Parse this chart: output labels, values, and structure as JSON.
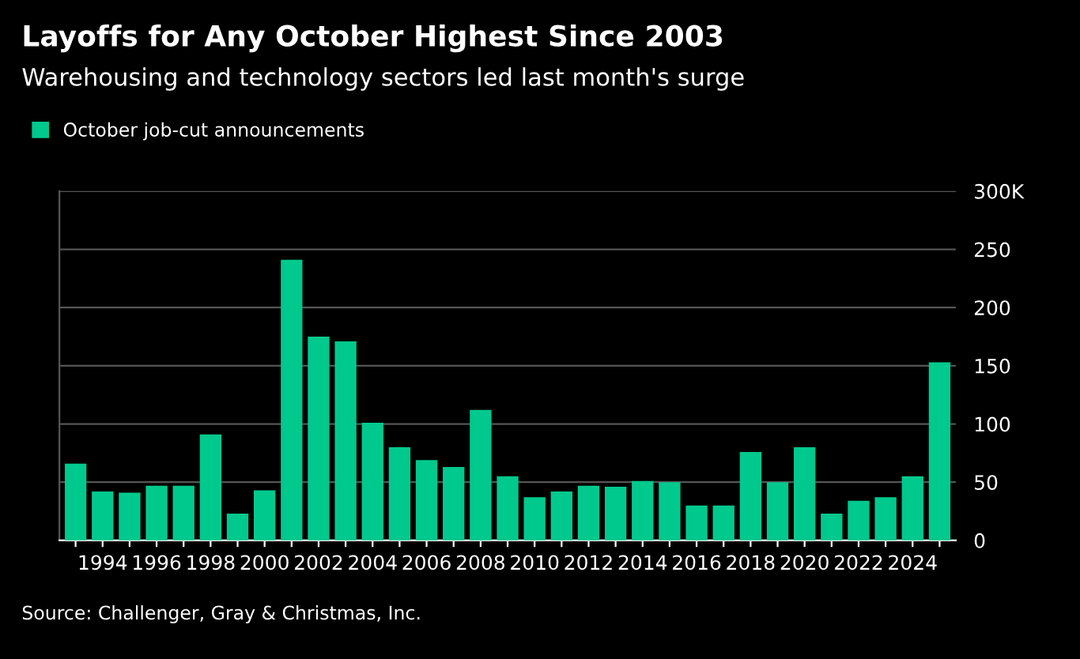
{
  "chart_data": {
    "type": "bar",
    "title": "Layoffs for Any October Highest Since 2003",
    "subtitle": "Warehousing and technology sectors led last month's surge",
    "categories": [
      null,
      "1994",
      null,
      "1996",
      null,
      "1998",
      null,
      "2000",
      null,
      "2002",
      null,
      "2004",
      null,
      "2006",
      null,
      "2008",
      null,
      "2010",
      null,
      "2012",
      null,
      "2014",
      null,
      "2016",
      null,
      "2018",
      null,
      "2020",
      null,
      "2022",
      null,
      "2024",
      null
    ],
    "series": [
      {
        "name": "October job-cut announcements",
        "color": "#00c98d",
        "values": [
          66,
          42,
          41,
          47,
          47,
          91,
          23,
          43,
          241,
          175,
          171,
          101,
          80,
          69,
          63,
          112,
          55,
          37,
          42,
          47,
          46,
          51,
          50,
          30,
          30,
          76,
          50,
          80,
          23,
          34,
          37,
          55,
          153
        ]
      }
    ],
    "ylim": [
      0,
      300
    ],
    "yticks": [
      0,
      50,
      100,
      150,
      200,
      250,
      {
        "value": 300,
        "label": "300K"
      }
    ],
    "grid": "y",
    "legend": "top left",
    "annotations": [
      "Source: Challenger, Gray & Christmas, Inc."
    ]
  }
}
